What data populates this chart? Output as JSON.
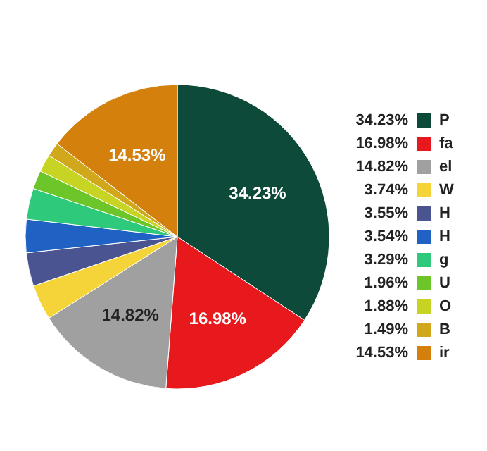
{
  "chart_data": {
    "type": "pie",
    "categories": [
      "P",
      "fa",
      "el",
      "W",
      "H",
      "H",
      "g",
      "U",
      "O",
      "B",
      "ir"
    ],
    "values": [
      34.23,
      16.98,
      14.82,
      3.74,
      3.55,
      3.54,
      3.29,
      1.96,
      1.88,
      1.49,
      14.53
    ],
    "value_labels": [
      "34.23%",
      "16.98%",
      "14.82%",
      "3.74%",
      "3.55%",
      "3.54%",
      "3.29%",
      "1.96%",
      "1.88%",
      "1.49%",
      "14.53%"
    ],
    "colors": [
      "#0d4a3a",
      "#e8191c",
      "#a0a0a0",
      "#f5d43a",
      "#4a5490",
      "#1f62c4",
      "#2ec97a",
      "#6cc62a",
      "#c8d424",
      "#d1a81c",
      "#d4800c"
    ],
    "legend": "right"
  }
}
